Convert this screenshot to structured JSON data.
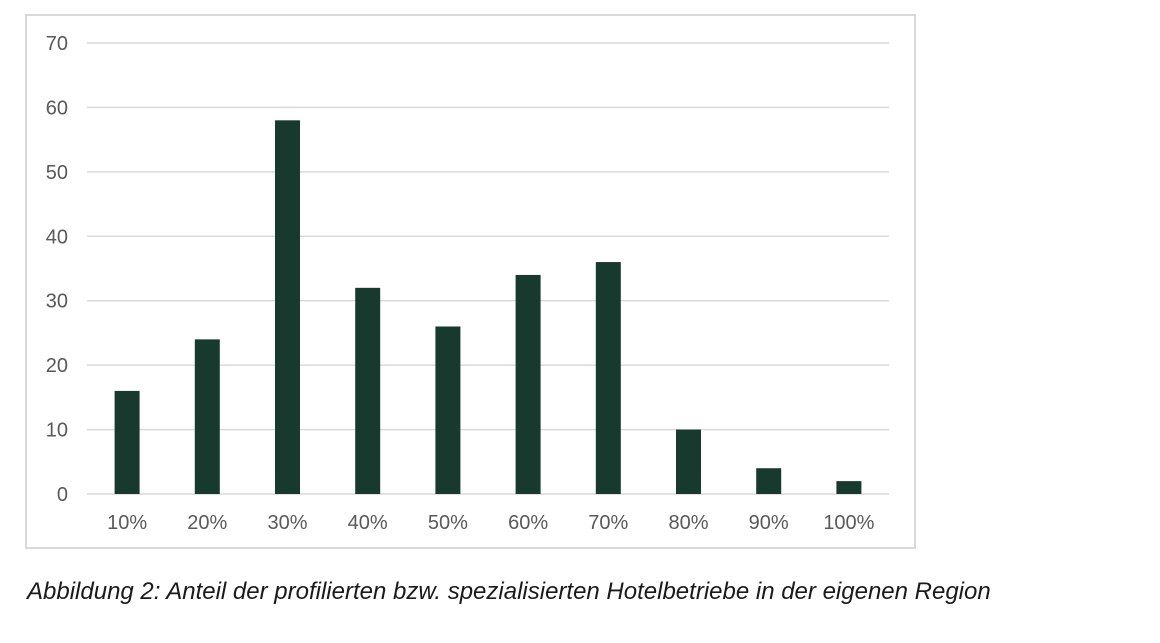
{
  "chart_data": {
    "type": "bar",
    "categories": [
      "10%",
      "20%",
      "30%",
      "40%",
      "50%",
      "60%",
      "70%",
      "80%",
      "90%",
      "100%"
    ],
    "values": [
      16,
      24,
      58,
      32,
      26,
      34,
      36,
      10,
      4,
      2
    ],
    "ylim": [
      0,
      70
    ],
    "yticks": [
      0,
      10,
      20,
      30,
      40,
      50,
      60,
      70
    ],
    "grid": true,
    "legend": "none",
    "bar_color": "#183a2e",
    "grid_color": "#d9d9d9",
    "tick_label_color": "#595959"
  },
  "caption": "Abbildung 2: Anteil der profilierten bzw. spezialisierten Hotelbetriebe in der eigenen Region"
}
